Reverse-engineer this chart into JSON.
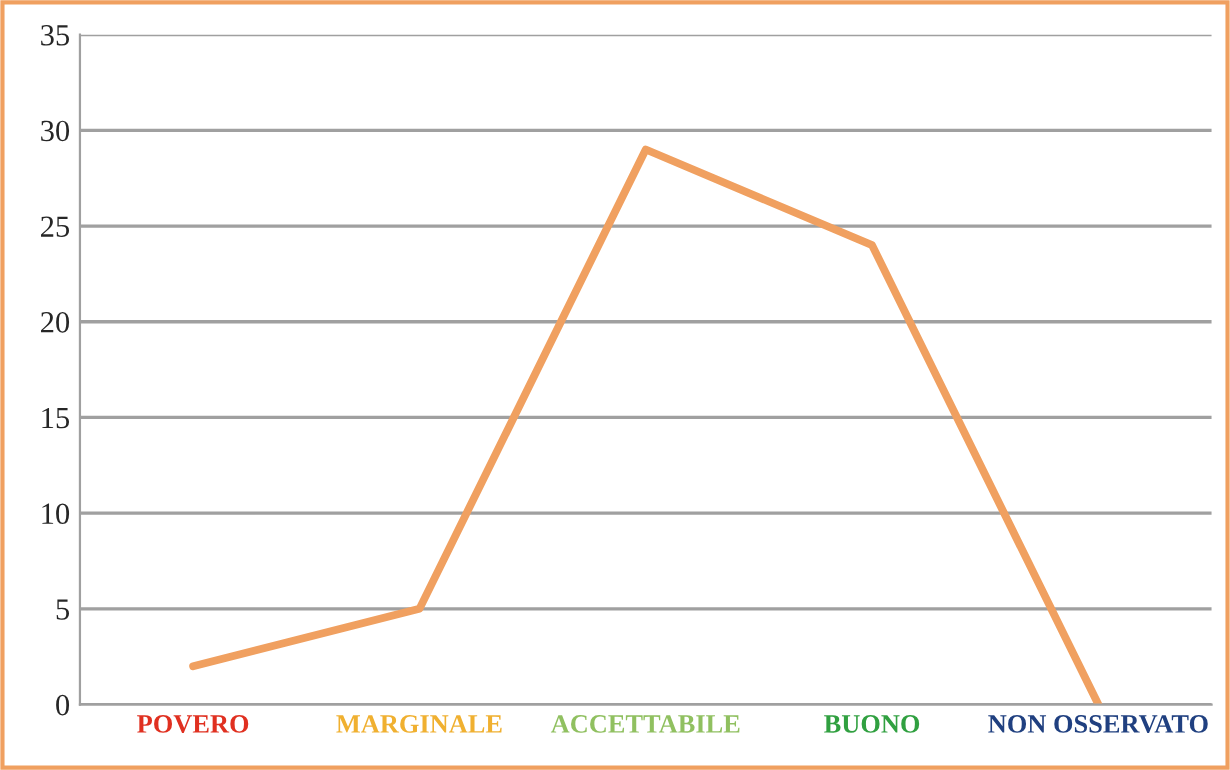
{
  "chart_data": {
    "type": "line",
    "categories": [
      "POVERO",
      "MARGINALE",
      "ACCETTABILE",
      "BUONO",
      "NON OSSERVATO"
    ],
    "series": [
      {
        "color": "#f0a060",
        "values": [
          2,
          5,
          29,
          24,
          0
        ]
      }
    ],
    "ylim": [
      0,
      35
    ],
    "yticks": [
      0,
      5,
      10,
      15,
      20,
      25,
      30,
      35
    ],
    "grid": "y",
    "marker": "none",
    "line_style": "solid"
  }
}
